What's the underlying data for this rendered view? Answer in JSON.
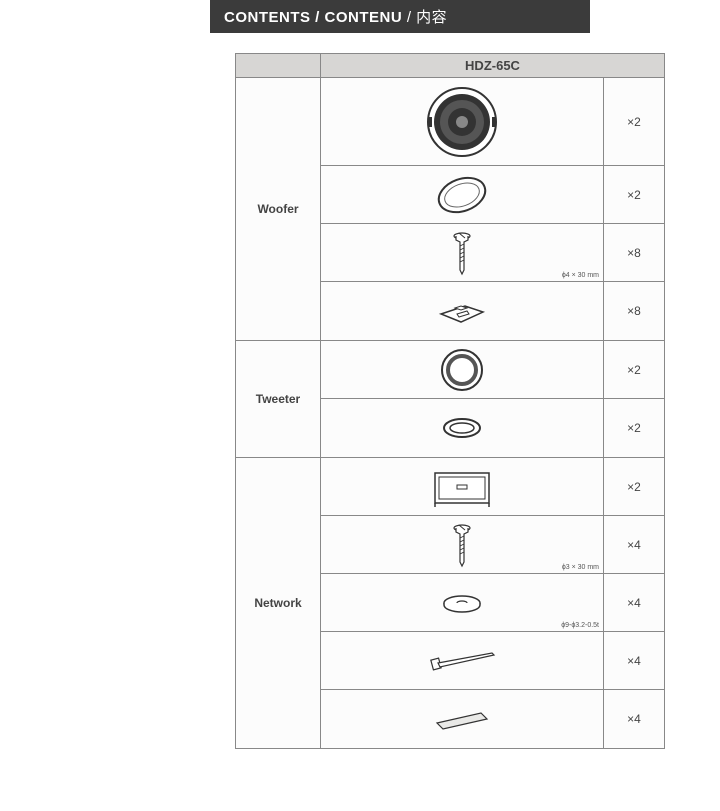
{
  "header": {
    "title_bold": "CONTENTS / CONTENU",
    "title_rest": " / 内容"
  },
  "model": "HDZ-65C",
  "sections": [
    {
      "name": "Woofer",
      "items": [
        {
          "id": "woofer-driver",
          "qty": "×2",
          "tall": true,
          "dim": ""
        },
        {
          "id": "woofer-grille",
          "qty": "×2",
          "tall": false,
          "dim": ""
        },
        {
          "id": "woofer-screw",
          "qty": "×8",
          "tall": false,
          "dim": "ϕ4 × 30 mm"
        },
        {
          "id": "woofer-clip",
          "qty": "×8",
          "tall": false,
          "dim": ""
        }
      ]
    },
    {
      "name": "Tweeter",
      "items": [
        {
          "id": "tweeter-driver",
          "qty": "×2",
          "tall": false,
          "dim": ""
        },
        {
          "id": "tweeter-ring",
          "qty": "×2",
          "tall": false,
          "dim": ""
        }
      ]
    },
    {
      "name": "Network",
      "items": [
        {
          "id": "network-box",
          "qty": "×2",
          "tall": false,
          "dim": ""
        },
        {
          "id": "network-screw",
          "qty": "×4",
          "tall": false,
          "dim": "ϕ3 × 30 mm"
        },
        {
          "id": "network-washer",
          "qty": "×4",
          "tall": false,
          "dim": "ϕ9-ϕ3.2-0.5t"
        },
        {
          "id": "network-tie",
          "qty": "×4",
          "tall": false,
          "dim": ""
        },
        {
          "id": "network-tape",
          "qty": "×4",
          "tall": false,
          "dim": ""
        }
      ]
    }
  ],
  "style": {
    "header_bg": "#3b3b3b",
    "border_color": "#888888",
    "model_bg": "#d7d6d4",
    "text_color": "#444444",
    "dim_color": "#555555"
  }
}
